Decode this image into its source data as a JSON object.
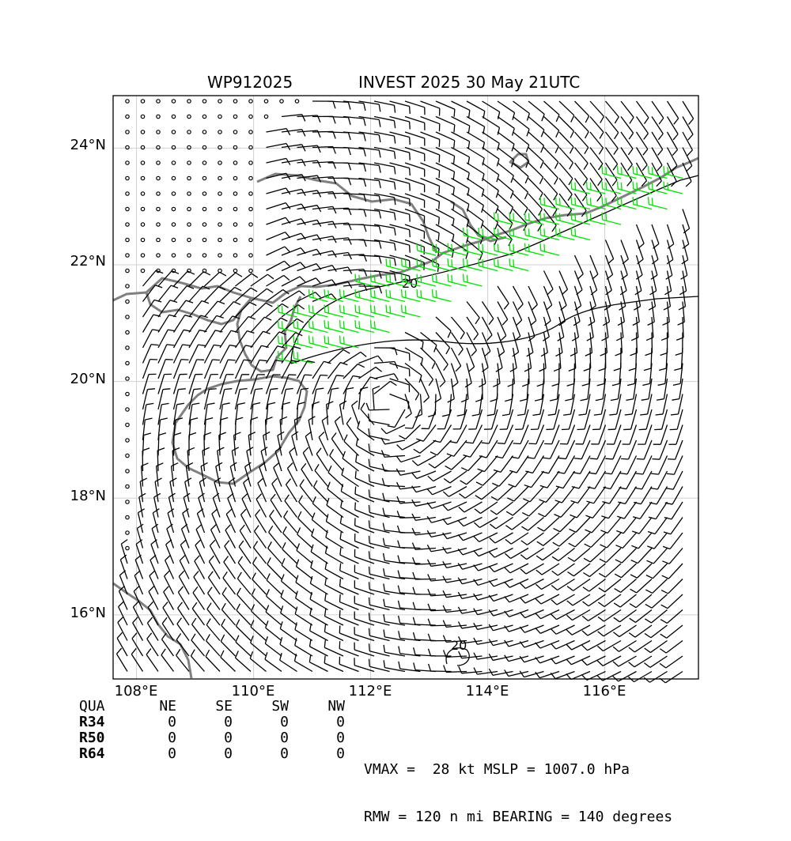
{
  "title": {
    "storm_id": "WP912025",
    "storm_name_time": "INVEST 2025 30 May 21UTC"
  },
  "map": {
    "lon_range": [
      107.6,
      117.6
    ],
    "lat_range": [
      14.9,
      24.9
    ],
    "lat_ticks": [
      "24°N",
      "22°N",
      "20°N",
      "18°N",
      "16°N"
    ],
    "lon_ticks": [
      "108°E",
      "110°E",
      "112°E",
      "114°E",
      "116°E"
    ],
    "contour_labels": [
      "20",
      "20"
    ],
    "colors": {
      "coastline": "#808080",
      "barb_normal": "#000000",
      "barb_strong": "#00e400",
      "grid": "#d0d0d0"
    },
    "circulation_center": {
      "lon": 112.3,
      "lat": 19.6
    }
  },
  "quadrant_table": {
    "header": [
      "QUA",
      "NE",
      "SE",
      "SW",
      "NW"
    ],
    "rows": [
      {
        "label": "R34",
        "values": [
          "0",
          "0",
          "0",
          "0"
        ]
      },
      {
        "label": "R50",
        "values": [
          "0",
          "0",
          "0",
          "0"
        ]
      },
      {
        "label": "R64",
        "values": [
          "0",
          "0",
          "0",
          "0"
        ]
      }
    ]
  },
  "stats": {
    "line1": "VMAX =  28 kt MSLP = 1007.0 hPa",
    "line2": "RMW = 120 n mi BEARING = 140 degrees"
  }
}
